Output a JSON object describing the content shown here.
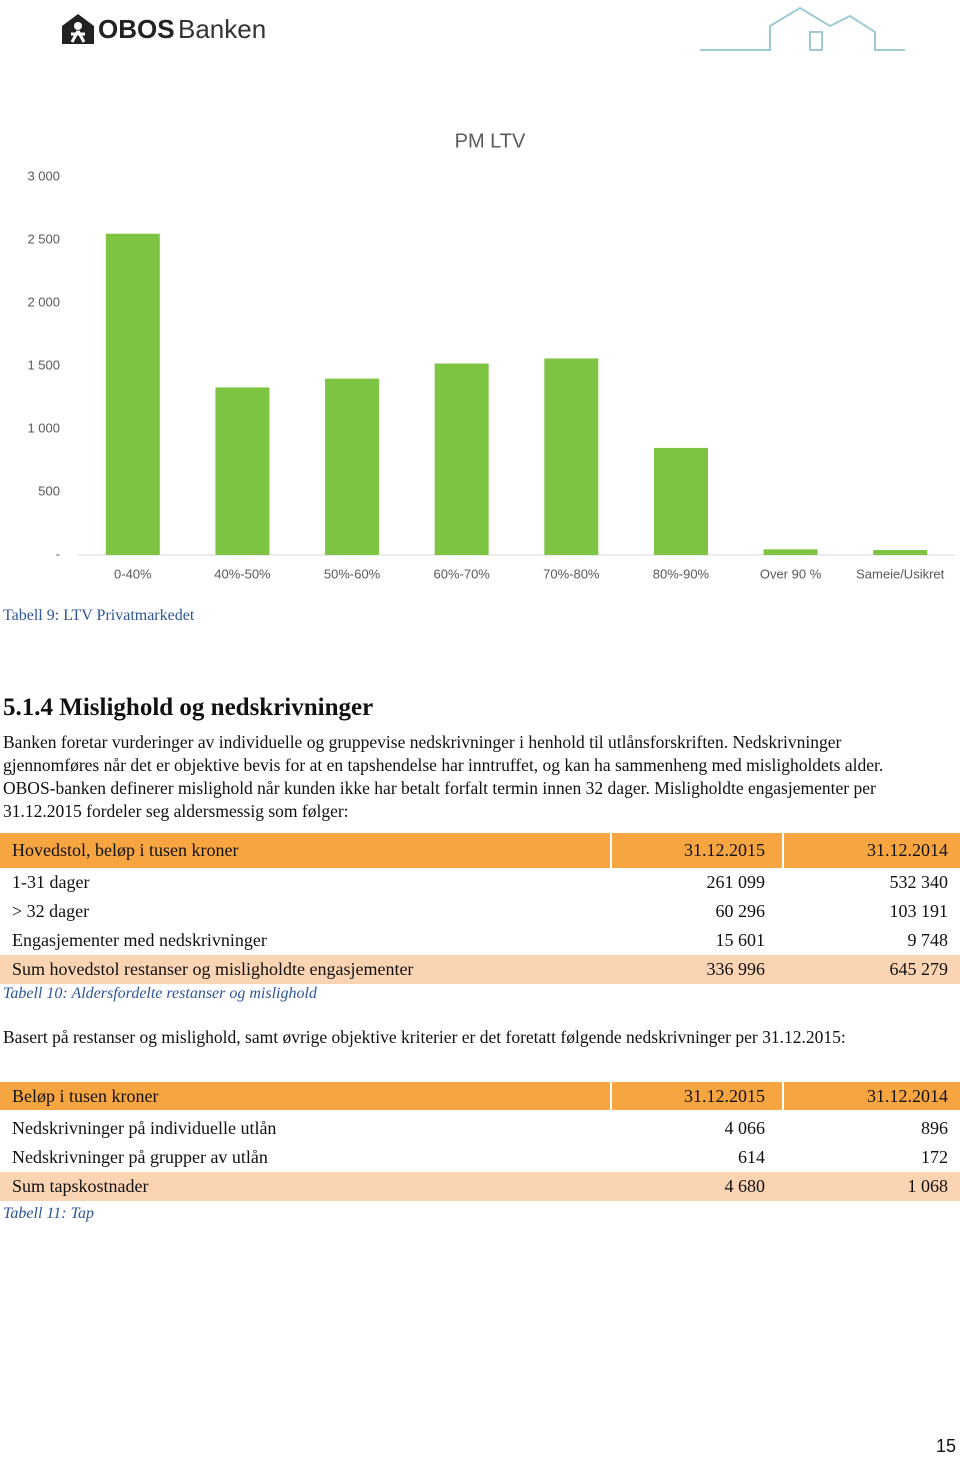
{
  "header": {
    "logo_bold": "OBOS",
    "logo_text": "Banken"
  },
  "chart_data": {
    "type": "bar",
    "title": "PM LTV",
    "categories": [
      "0-40%",
      "40%-50%",
      "50%-60%",
      "60%-70%",
      "70%-80%",
      "80%-90%",
      "Over 90 %",
      "Sameie/Usikret"
    ],
    "values": [
      2550,
      1330,
      1400,
      1520,
      1560,
      850,
      45,
      40
    ],
    "color": "#7dc443",
    "ylim": [
      0,
      3000
    ],
    "yticks": [
      {
        "value": 0,
        "label": "-"
      },
      500,
      {
        "value": 1000,
        "label": "1 000"
      },
      {
        "value": 1500,
        "label": "1 500"
      },
      {
        "value": 2000,
        "label": "2 000"
      },
      {
        "value": 2500,
        "label": "2 500"
      },
      {
        "value": 3000,
        "label": "3 000"
      }
    ],
    "grid": false
  },
  "chart_caption": "Tabell 9: LTV Privatmarkedet",
  "section": {
    "heading": "5.1.4  Mislighold og nedskrivninger",
    "paragraph": "Banken foretar vurderinger av individuelle og gruppevise nedskrivninger i henhold til utlånsforskriften. Nedskrivninger gjennomføres når det er objektive bevis for at en tapshendelse har inntruffet, og kan ha sammenheng med misligholdets alder. OBOS-banken definerer mislighold når kunden ikke har betalt forfalt termin innen 32 dager. Misligholdte engasjementer per 31.12.2015 fordeler seg aldersmessig som følger:"
  },
  "table_1": {
    "header": [
      "Hovedstol, beløp i tusen kroner",
      "31.12.2015",
      "31.12.2014"
    ],
    "rows": [
      [
        "1-31 dager",
        "261 099",
        "532 340"
      ],
      [
        "> 32 dager",
        "60 296",
        "103 191"
      ],
      [
        "Engasjementer med nedskrivninger",
        "15 601",
        "9 748"
      ],
      [
        "Sum hovedstol restanser og misligholdte engasjementer",
        "336 996",
        "645 279"
      ]
    ],
    "caption": "Tabell 10: Aldersfordelte restanser og mislighold"
  },
  "paragraph_2": "Basert på restanser og mislighold, samt øvrige objektive kriterier er det foretatt følgende nedskrivninger per 31.12.2015:",
  "table_2": {
    "header": [
      "Beløp i tusen kroner",
      "31.12.2015",
      "31.12.2014"
    ],
    "rows": [
      [
        "Nedskrivninger på individuelle utlån",
        "4 066",
        "896"
      ],
      [
        "Nedskrivninger på grupper av utlån",
        "614",
        "172"
      ],
      [
        "Sum tapskostnader",
        "4 680",
        "1 068"
      ]
    ],
    "caption": "Tabell 11: Tap"
  },
  "page_number": "15"
}
